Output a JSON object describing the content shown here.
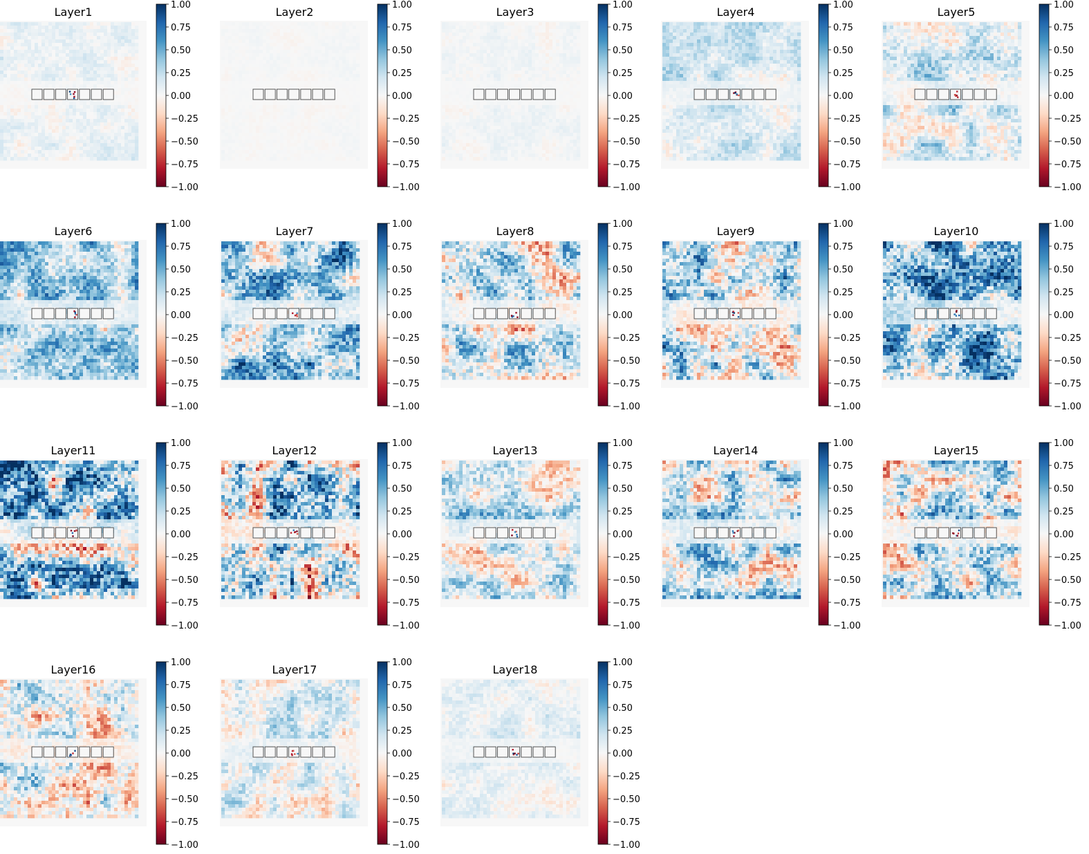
{
  "chart_data": {
    "type": "heatmap",
    "colormap": "RdBu",
    "colorbar": {
      "vmin": -1.0,
      "vmax": 1.0,
      "tick_values": [
        1.0,
        0.75,
        0.5,
        0.25,
        0.0,
        -0.25,
        -0.5,
        -0.75,
        -1.0
      ],
      "tick_labels": [
        "1.00",
        "0.75",
        "0.50",
        "0.25",
        "0.00",
        "−0.25",
        "−0.50",
        "−0.75",
        "−1.00"
      ]
    },
    "grid": {
      "rows": 4,
      "cols": 5
    },
    "boxes_per_panel": 7,
    "panels": [
      {
        "title": "Layer1",
        "intensity": 0.12,
        "bias": 0.05,
        "hot_box": 3
      },
      {
        "title": "Layer2",
        "intensity": 0.03,
        "bias": 0.0,
        "hot_box": 3
      },
      {
        "title": "Layer3",
        "intensity": 0.06,
        "bias": 0.02,
        "hot_box": 3
      },
      {
        "title": "Layer4",
        "intensity": 0.2,
        "bias": 0.15,
        "hot_box": 3
      },
      {
        "title": "Layer5",
        "intensity": 0.3,
        "bias": 0.12,
        "hot_box": 3
      },
      {
        "title": "Layer6",
        "intensity": 0.4,
        "bias": 0.3,
        "hot_box": 3
      },
      {
        "title": "Layer7",
        "intensity": 0.5,
        "bias": 0.3,
        "hot_box": 3
      },
      {
        "title": "Layer8",
        "intensity": 0.5,
        "bias": 0.1,
        "hot_box": 3
      },
      {
        "title": "Layer9",
        "intensity": 0.55,
        "bias": 0.1,
        "hot_box": 3
      },
      {
        "title": "Layer10",
        "intensity": 0.6,
        "bias": 0.4,
        "hot_box": 3
      },
      {
        "title": "Layer11",
        "intensity": 0.7,
        "bias": 0.3,
        "hot_box": 3
      },
      {
        "title": "Layer12",
        "intensity": 0.7,
        "bias": 0.2,
        "hot_box": 3
      },
      {
        "title": "Layer13",
        "intensity": 0.4,
        "bias": 0.1,
        "hot_box": 3
      },
      {
        "title": "Layer14",
        "intensity": 0.5,
        "bias": 0.15,
        "hot_box": 3
      },
      {
        "title": "Layer15",
        "intensity": 0.55,
        "bias": 0.1,
        "hot_box": 3
      },
      {
        "title": "Layer16",
        "intensity": 0.45,
        "bias": -0.05,
        "hot_box": 3
      },
      {
        "title": "Layer17",
        "intensity": 0.3,
        "bias": 0.05,
        "hot_box": 3
      },
      {
        "title": "Layer18",
        "intensity": 0.15,
        "bias": 0.05,
        "hot_box": 3
      }
    ]
  }
}
